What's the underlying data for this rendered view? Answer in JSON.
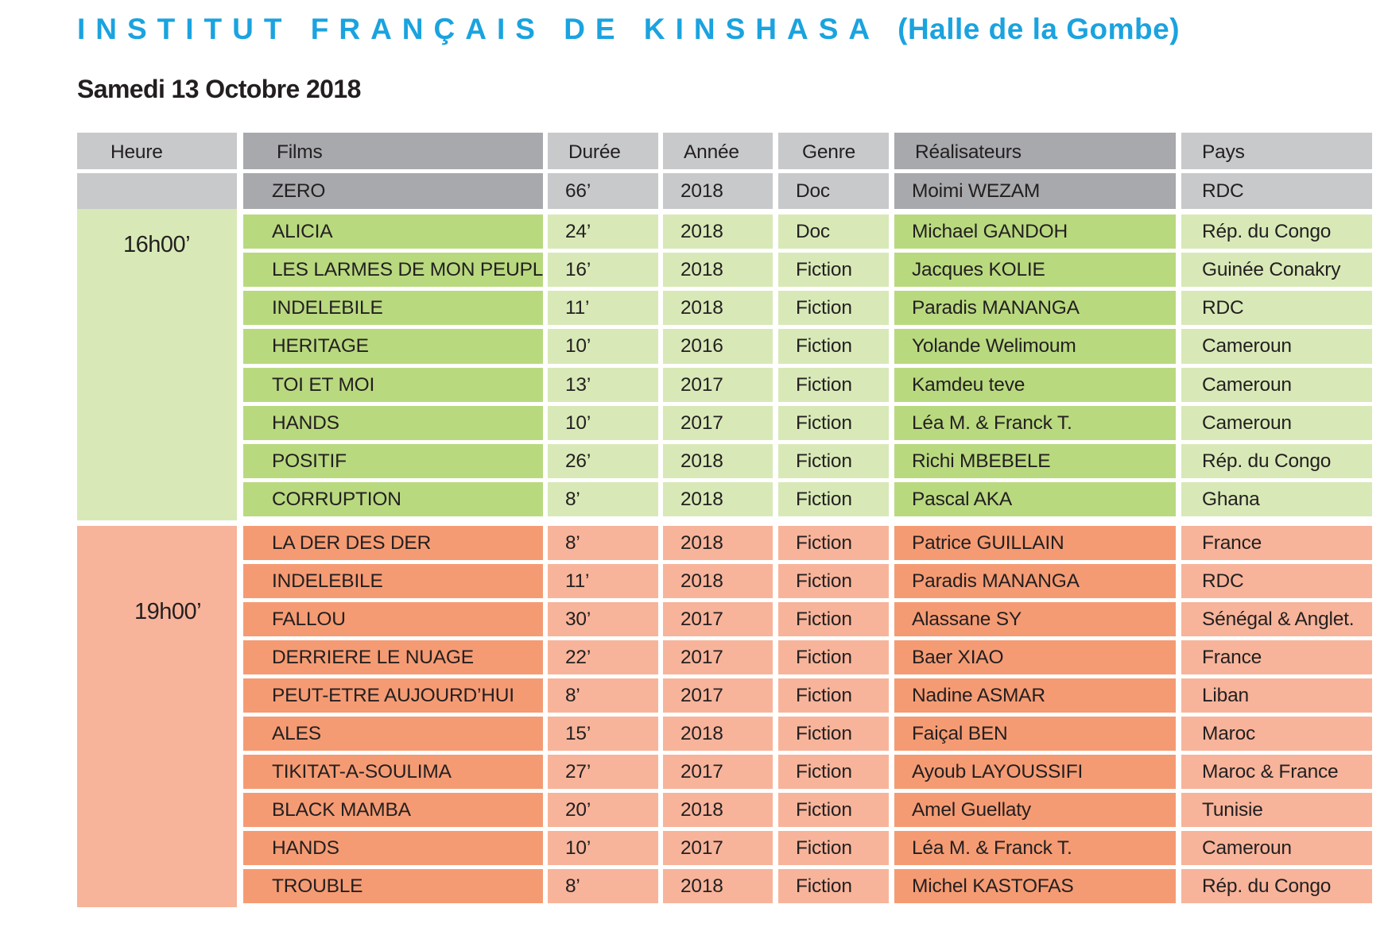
{
  "title": {
    "main": "INSTITUT FRANÇAIS DE KINSHASA",
    "sub": "(Halle de la Gombe)"
  },
  "date": "Samedi 13 Octobre 2018",
  "colors": {
    "title": "#1aa3df",
    "header_light": "#c8c9cb",
    "header_dark": "#a8a9ad",
    "green_light": "#d8e9b7",
    "green_dark": "#b9d97f",
    "orange_light": "#f7b49a",
    "orange_dark": "#f59b73"
  },
  "table": {
    "headers": [
      "Heure",
      "Films",
      "Durée",
      "Année",
      "Genre",
      "Réalisateurs",
      "Pays"
    ],
    "intro_row": {
      "film": "ZERO",
      "duree": "66’",
      "annee": "2018",
      "genre": "Doc",
      "realisateur": "Moimi WEZAM",
      "pays": "RDC"
    },
    "sessions": [
      {
        "heure": "16h00’",
        "theme": "green",
        "films": [
          {
            "film": "ALICIA",
            "duree": "24’",
            "annee": "2018",
            "genre": "Doc",
            "realisateur": "Michael GANDOH",
            "pays": "Rép. du Congo"
          },
          {
            "film": "LES LARMES DE MON PEUPLE",
            "duree": "16’",
            "annee": "2018",
            "genre": "Fiction",
            "realisateur": "Jacques KOLIE",
            "pays": "Guinée Conakry"
          },
          {
            "film": "INDELEBILE",
            "duree": "11’",
            "annee": "2018",
            "genre": "Fiction",
            "realisateur": "Paradis MANANGA",
            "pays": "RDC"
          },
          {
            "film": "HERITAGE",
            "duree": "10’",
            "annee": "2016",
            "genre": "Fiction",
            "realisateur": "Yolande Welimoum",
            "pays": "Cameroun"
          },
          {
            "film": "TOI ET MOI",
            "duree": "13’",
            "annee": "2017",
            "genre": "Fiction",
            "realisateur": "Kamdeu teve",
            "pays": "Cameroun"
          },
          {
            "film": "HANDS",
            "duree": "10’",
            "annee": "2017",
            "genre": "Fiction",
            "realisateur": "Léa M. & Franck T.",
            "pays": "Cameroun"
          },
          {
            "film": "POSITIF",
            "duree": "26’",
            "annee": "2018",
            "genre": "Fiction",
            "realisateur": "Richi MBEBELE",
            "pays": "Rép. du Congo"
          },
          {
            "film": "CORRUPTION",
            "duree": "8’",
            "annee": "2018",
            "genre": "Fiction",
            "realisateur": "Pascal AKA",
            "pays": "Ghana"
          }
        ]
      },
      {
        "heure": "19h00’",
        "theme": "orange",
        "films": [
          {
            "film": "LA DER DES DER",
            "duree": "8’",
            "annee": "2018",
            "genre": "Fiction",
            "realisateur": "Patrice GUILLAIN",
            "pays": "France"
          },
          {
            "film": "INDELEBILE",
            "duree": "11’",
            "annee": "2018",
            "genre": "Fiction",
            "realisateur": "Paradis MANANGA",
            "pays": "RDC"
          },
          {
            "film": "FALLOU",
            "duree": "30’",
            "annee": "2017",
            "genre": "Fiction",
            "realisateur": "Alassane SY",
            "pays": "Sénégal & Anglet."
          },
          {
            "film": "DERRIERE LE NUAGE",
            "duree": "22’",
            "annee": "2017",
            "genre": "Fiction",
            "realisateur": "Baer XIAO",
            "pays": "France"
          },
          {
            "film": "PEUT-ETRE AUJOURD’HUI",
            "duree": "8’",
            "annee": "2017",
            "genre": "Fiction",
            "realisateur": "Nadine ASMAR",
            "pays": "Liban"
          },
          {
            "film": "ALES",
            "duree": "15’",
            "annee": "2018",
            "genre": "Fiction",
            "realisateur": "Faiçal BEN",
            "pays": "Maroc"
          },
          {
            "film": "TIKITAT-A-SOULIMA",
            "duree": "27’",
            "annee": "2017",
            "genre": "Fiction",
            "realisateur": "Ayoub LAYOUSSIFI",
            "pays": "Maroc & France"
          },
          {
            "film": "BLACK MAMBA",
            "duree": "20’",
            "annee": "2018",
            "genre": "Fiction",
            "realisateur": "Amel Guellaty",
            "pays": "Tunisie"
          },
          {
            "film": "HANDS",
            "duree": "10’",
            "annee": "2017",
            "genre": "Fiction",
            "realisateur": "Léa M. & Franck T.",
            "pays": "Cameroun"
          },
          {
            "film": "TROUBLE",
            "duree": "8’",
            "annee": "2018",
            "genre": "Fiction",
            "realisateur": "Michel KASTOFAS",
            "pays": "Rép. du Congo"
          }
        ]
      }
    ]
  }
}
